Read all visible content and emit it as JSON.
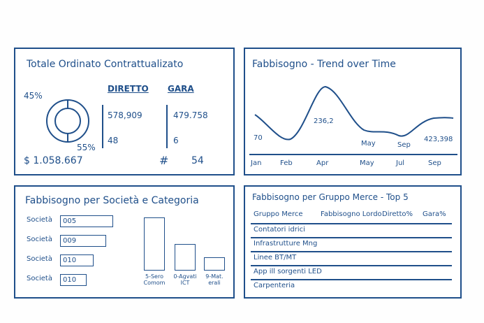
{
  "ordinato": {
    "title": "Totale Ordinato Contrattualizato",
    "pct_top": "45%",
    "pct_bottom": "55%",
    "col_diretto": "DIRETTO",
    "col_gara": "GARA",
    "diretto_value": "578,909",
    "diretto_count": "48",
    "gara_value": "479.758",
    "gara_count": "6",
    "total": "$ 1.058.667",
    "count_symbol": "#",
    "count_value": "54"
  },
  "trend": {
    "title": "Fabbisogno - Trend over Time",
    "months": [
      "Jan",
      "Feb",
      "Apr",
      "May",
      "Jul",
      "Sep"
    ],
    "labels": {
      "start": "70",
      "peak": "236,2",
      "may": "May",
      "sep": "Sep",
      "end": "423,398"
    }
  },
  "chart_data": {
    "type": "line",
    "title": "Fabbisogno - Trend over Time",
    "categories": [
      "Jan",
      "Feb",
      "Apr",
      "May",
      "Jul",
      "Sep"
    ],
    "values": [
      160,
      70,
      236.2,
      90,
      80,
      140
    ],
    "annotations": [
      "70",
      "236,2",
      "May",
      "Sep",
      "423,398"
    ]
  },
  "societa": {
    "title": "Fabbisogno per Società e Categoria",
    "rows": [
      {
        "label": "Società",
        "value": "005"
      },
      {
        "label": "Società",
        "value": "009"
      },
      {
        "label": "Società",
        "value": "010"
      },
      {
        "label": "Società",
        "value": "010"
      }
    ],
    "bars": [
      {
        "label": "5-Sero Comom",
        "level": 1.0
      },
      {
        "label": "0-Agvati ICT",
        "level": 0.55
      },
      {
        "label": "9-Mat. erali",
        "level": 0.25
      }
    ]
  },
  "gruppo": {
    "title": "Fabbisogno per Gruppo Merce - Top 5",
    "headers": [
      "Gruppo Merce",
      "Fabbisogno Lordo",
      "Diretto%",
      "Gara%"
    ],
    "rows": [
      "Contatori idrici",
      "Infrastrutture Mng",
      "Linee BT/MT",
      "App ill sorgenti LED",
      "Carpenteria"
    ]
  }
}
